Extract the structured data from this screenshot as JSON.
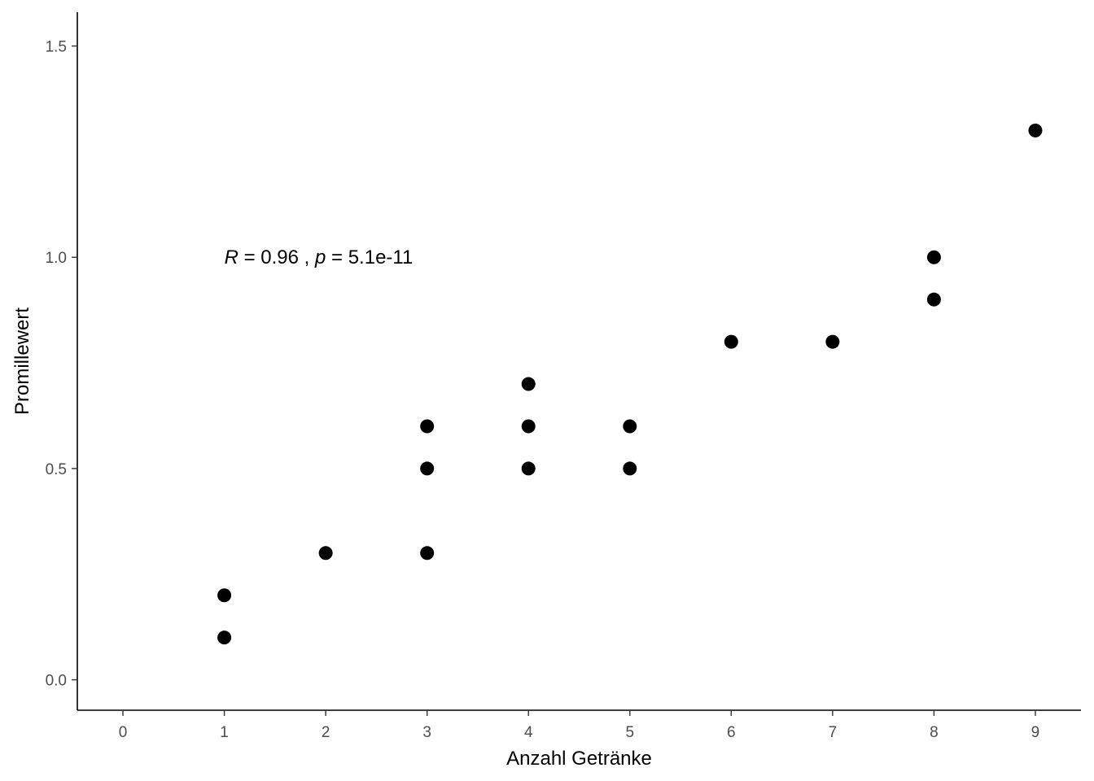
{
  "chart_data": {
    "type": "scatter",
    "title": "",
    "xlabel": "Anzahl Getränke",
    "ylabel": "Promillewert",
    "xlim": [
      -0.45,
      9.45
    ],
    "ylim": [
      -0.072,
      1.58
    ],
    "x_ticks": [
      0,
      1,
      2,
      3,
      4,
      5,
      6,
      7,
      8,
      9
    ],
    "x_tick_labels": [
      "0",
      "1",
      "2",
      "3",
      "4",
      "5",
      "6",
      "7",
      "8",
      "9"
    ],
    "y_ticks": [
      0.0,
      0.5,
      1.0,
      1.5
    ],
    "y_tick_labels": [
      "0.0",
      "0.5",
      "1.0",
      "1.5"
    ],
    "grid": false,
    "legend": "none",
    "series": [
      {
        "points": [
          {
            "x": 1,
            "y": 0.1
          },
          {
            "x": 1,
            "y": 0.2
          },
          {
            "x": 2,
            "y": 0.3
          },
          {
            "x": 3,
            "y": 0.3
          },
          {
            "x": 3,
            "y": 0.5
          },
          {
            "x": 3,
            "y": 0.6
          },
          {
            "x": 4,
            "y": 0.5
          },
          {
            "x": 4,
            "y": 0.6
          },
          {
            "x": 4,
            "y": 0.7
          },
          {
            "x": 5,
            "y": 0.5
          },
          {
            "x": 5,
            "y": 0.6
          },
          {
            "x": 6,
            "y": 0.8
          },
          {
            "x": 7,
            "y": 0.8
          },
          {
            "x": 8,
            "y": 0.9
          },
          {
            "x": 8,
            "y": 1.0
          },
          {
            "x": 9,
            "y": 1.3
          }
        ]
      }
    ],
    "point_color": "#000000",
    "annotation": {
      "r_symbol": "R",
      "r_text": " = 0.96 , ",
      "p_symbol": "p",
      "p_text": " = 5.1e-11",
      "x": 1,
      "y": 1.0
    }
  }
}
